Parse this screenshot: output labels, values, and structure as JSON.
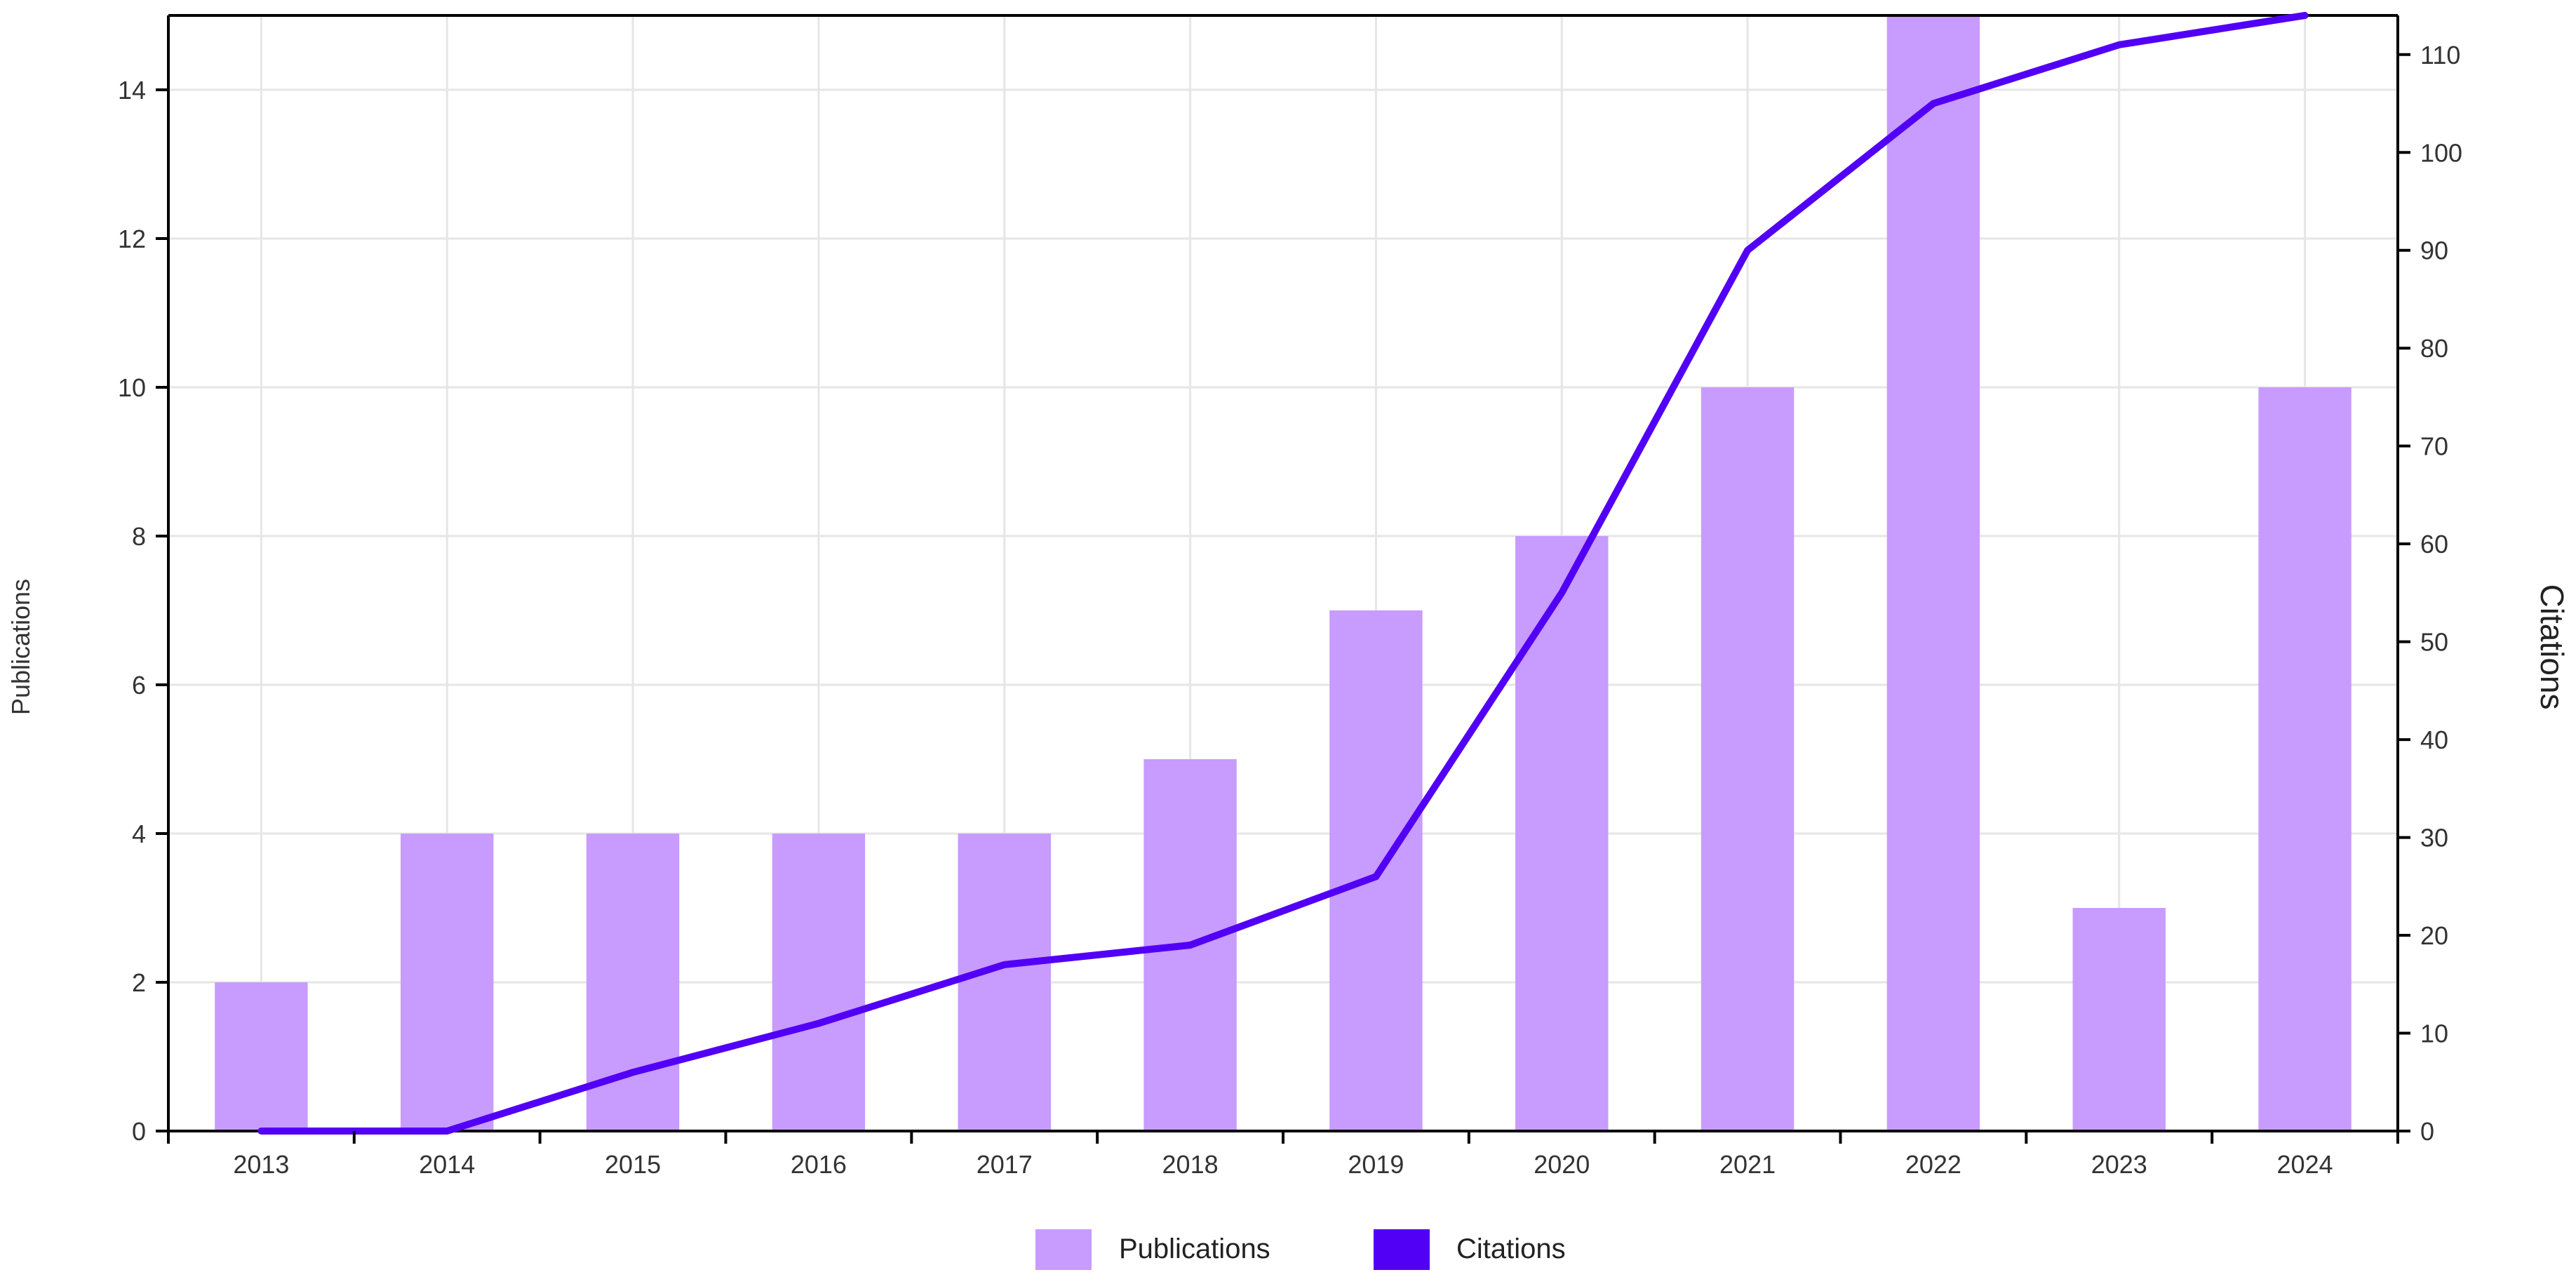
{
  "chart_data": {
    "type": "bar+line",
    "categories": [
      "2013",
      "2014",
      "2015",
      "2016",
      "2017",
      "2018",
      "2019",
      "2020",
      "2021",
      "2022",
      "2023",
      "2024"
    ],
    "series": [
      {
        "name": "Publications",
        "type": "bar",
        "axis": "left",
        "values": [
          2,
          4,
          4,
          4,
          4,
          5,
          7,
          8,
          10,
          15,
          3,
          10
        ]
      },
      {
        "name": "Citations",
        "type": "line",
        "axis": "right",
        "values": [
          0,
          0,
          6,
          11,
          17,
          19,
          26,
          55,
          90,
          105,
          111,
          114
        ]
      }
    ],
    "y_left": {
      "label": "Publications",
      "lim": [
        0,
        15
      ],
      "ticks": [
        0,
        2,
        4,
        6,
        8,
        10,
        12,
        14
      ]
    },
    "y_right": {
      "label": "Citations",
      "lim": [
        0,
        114
      ],
      "ticks": [
        0,
        10,
        20,
        30,
        40,
        50,
        60,
        70,
        80,
        90,
        100,
        110
      ]
    },
    "grid": true,
    "legend": {
      "placement": "bottom-center",
      "entries": [
        "Publications",
        "Citations"
      ]
    },
    "colors": {
      "bar": "#c89bff",
      "line": "#5200f5",
      "grid": "#e6e6e6",
      "axis": "#000000"
    }
  }
}
